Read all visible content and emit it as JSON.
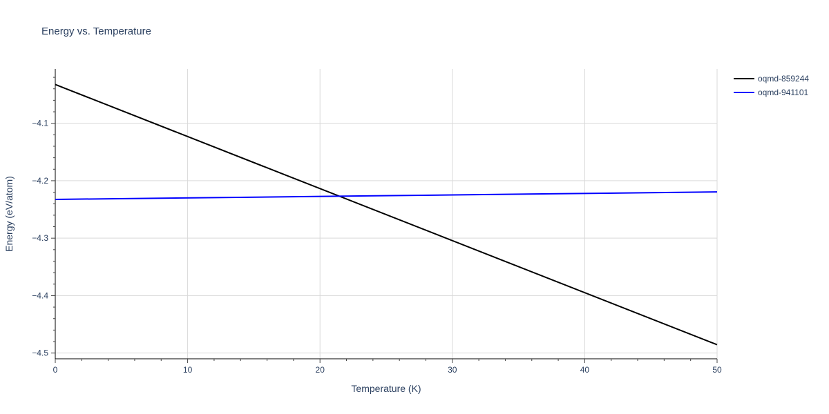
{
  "chart_data": {
    "type": "line",
    "title": "Energy vs. Temperature",
    "xlabel": "Temperature (K)",
    "ylabel": "Energy (eV/atom)",
    "xlim": [
      0,
      50
    ],
    "ylim": [
      -4.51,
      -4.0055
    ],
    "x_ticks": [
      0,
      10,
      20,
      30,
      40,
      50
    ],
    "x_tick_labels": [
      "0",
      "10",
      "20",
      "30",
      "40",
      "50"
    ],
    "y_ticks": [
      -4.1,
      -4.2,
      -4.3,
      -4.4,
      -4.5
    ],
    "y_tick_labels": [
      "−4.1",
      "−4.2",
      "−4.3",
      "−4.4",
      "−4.5"
    ],
    "grid": true,
    "legend_position": "top-right",
    "series": [
      {
        "name": "oqmd-859244",
        "color": "#000000",
        "x": [
          0,
          50
        ],
        "y": [
          -4.0325,
          -4.4855
        ]
      },
      {
        "name": "oqmd-941101",
        "color": "#0000ff",
        "x": [
          0,
          50
        ],
        "y": [
          -4.2325,
          -4.2195
        ]
      }
    ]
  }
}
